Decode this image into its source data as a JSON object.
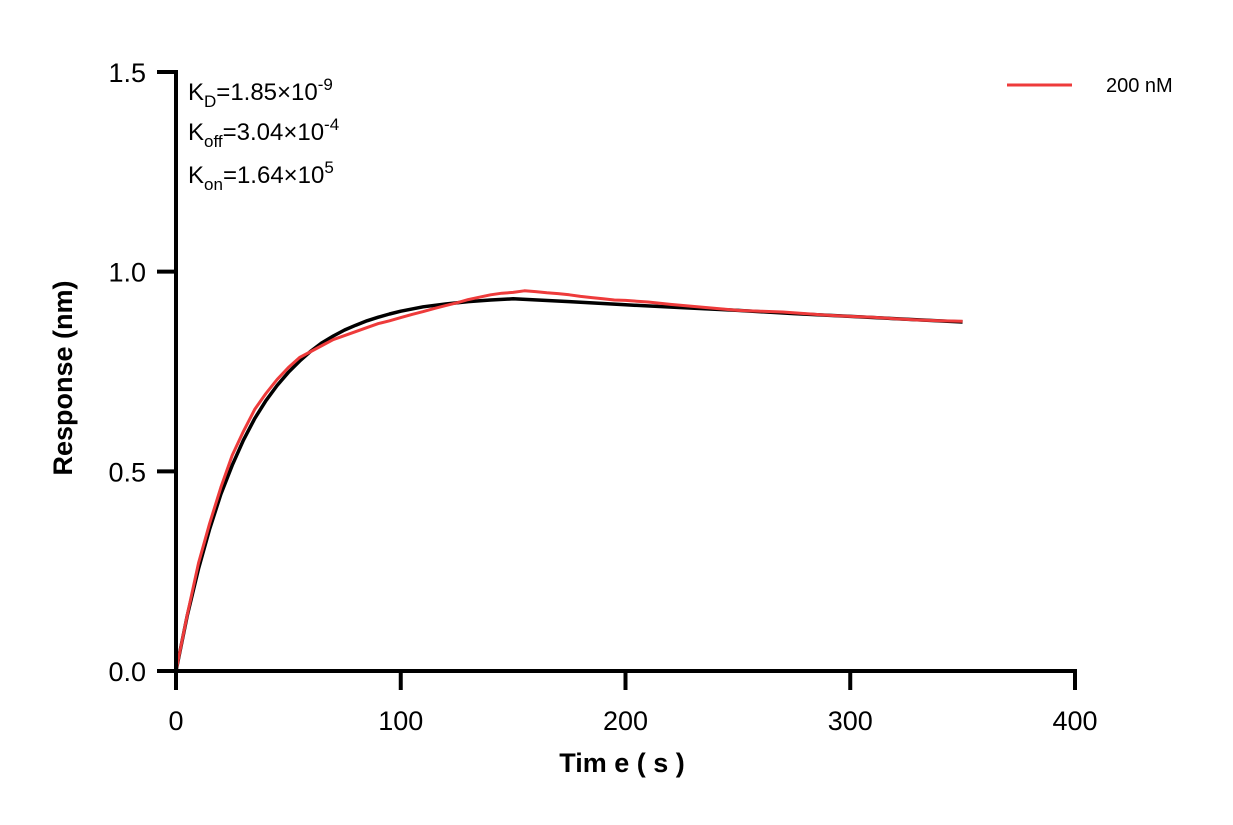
{
  "chart_data": {
    "type": "line",
    "xlabel": "Tim e ( s )",
    "ylabel": "Response (nm)",
    "xlim": [
      0,
      400
    ],
    "ylim": [
      0,
      1.5
    ],
    "xticks": [
      "0",
      "100",
      "200",
      "300",
      "400"
    ],
    "yticks": [
      "0.0",
      "0.5",
      "1.0",
      "1.5"
    ],
    "grid": false,
    "legend_position": "top-right",
    "annotations": {
      "kd": {
        "base": "K",
        "sub": "D",
        "value": "=1.85×10",
        "exp": "-9"
      },
      "koff": {
        "base": "K",
        "sub": "off",
        "value": "=3.04×10",
        "exp": "-4"
      },
      "kon": {
        "base": "K",
        "sub": "on",
        "value": "=1.64×10",
        "exp": "5"
      }
    },
    "series": [
      {
        "name": "200 nM",
        "color": "#ee3b3b",
        "x": [
          0,
          5,
          10,
          15,
          20,
          25,
          30,
          35,
          40,
          45,
          50,
          55,
          60,
          65,
          70,
          75,
          80,
          85,
          90,
          95,
          100,
          105,
          110,
          115,
          120,
          125,
          130,
          135,
          140,
          145,
          150,
          155,
          160,
          165,
          170,
          175,
          180,
          185,
          190,
          195,
          200,
          210,
          220,
          230,
          240,
          250,
          260,
          270,
          280,
          290,
          300,
          310,
          320,
          330,
          340,
          350
        ],
        "y": [
          0,
          0.14,
          0.27,
          0.37,
          0.46,
          0.54,
          0.6,
          0.655,
          0.695,
          0.73,
          0.76,
          0.785,
          0.8,
          0.815,
          0.83,
          0.84,
          0.85,
          0.86,
          0.87,
          0.877,
          0.885,
          0.893,
          0.9,
          0.908,
          0.915,
          0.922,
          0.93,
          0.936,
          0.942,
          0.946,
          0.948,
          0.952,
          0.95,
          0.947,
          0.945,
          0.942,
          0.938,
          0.935,
          0.932,
          0.929,
          0.928,
          0.924,
          0.918,
          0.913,
          0.908,
          0.903,
          0.901,
          0.899,
          0.895,
          0.891,
          0.888,
          0.886,
          0.882,
          0.879,
          0.877,
          0.876
        ]
      },
      {
        "color": "#000000",
        "x": [
          0,
          5,
          10,
          15,
          20,
          25,
          30,
          35,
          40,
          45,
          50,
          55,
          60,
          65,
          70,
          75,
          80,
          85,
          90,
          95,
          100,
          110,
          120,
          130,
          140,
          150,
          175,
          200,
          225,
          250,
          275,
          300,
          325,
          350
        ],
        "y": [
          0,
          0.138,
          0.256,
          0.356,
          0.443,
          0.515,
          0.578,
          0.632,
          0.677,
          0.715,
          0.748,
          0.776,
          0.801,
          0.822,
          0.839,
          0.854,
          0.866,
          0.877,
          0.886,
          0.894,
          0.901,
          0.912,
          0.919,
          0.925,
          0.929,
          0.932,
          0.925,
          0.917,
          0.91,
          0.903,
          0.895,
          0.888,
          0.881,
          0.874
        ]
      }
    ]
  }
}
